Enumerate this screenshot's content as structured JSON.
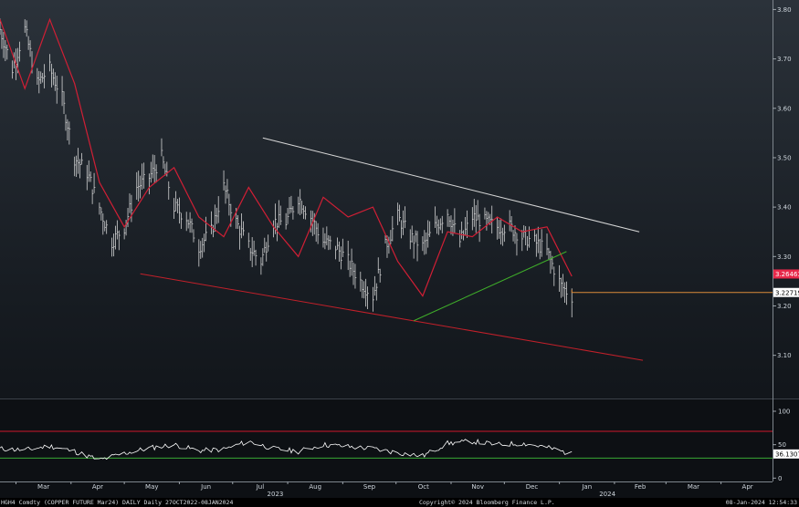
{
  "footer": {
    "ticker": "HGH4 Comdty (COPPER FUTURE    Mar24) DAILY  Daily 27OCT2022-08JAN2024",
    "copyright": "Copyright© 2024 Bloomberg Finance L.P.",
    "timestamp": "08-Jan-2024 12:54:33"
  },
  "colors": {
    "background_top": "#2a3139",
    "bars": "#e6e6e6",
    "moving_average": "#d11f35",
    "upper_trendline": "#d8d8d8",
    "lower_trendline": "#c2202a",
    "rising_trendline": "#3fae2a",
    "last_price_tag": "#e8294a",
    "level_line": "#d9893a",
    "rsi_line": "#ffffff",
    "rsi_upper_band": "#d0192b",
    "rsi_lower_band": "#39a935"
  },
  "chart_data": [
    {
      "type": "line",
      "subtype": "daily price bars with moving average",
      "x_range": [
        "2023-02-20",
        "2024-04-30"
      ],
      "y_range": [
        3.02,
        3.81
      ],
      "y_ticks": [
        "3.80",
        "3.70",
        "3.60",
        "3.50",
        "3.40",
        "3.30",
        "3.20",
        "3.10"
      ],
      "x_month_labels": [
        "Mar",
        "Apr",
        "May",
        "Jun",
        "Jul",
        "Aug",
        "Sep",
        "Oct",
        "Nov",
        "Dec",
        "Jan",
        "Feb",
        "Mar",
        "Apr"
      ],
      "year_labels": [
        "2023",
        "2024"
      ],
      "series": [
        {
          "style": "bars",
          "x": [
            "2023-02-20",
            "2023-02-27",
            "2023-03-06",
            "2023-03-13",
            "2023-03-20",
            "2023-03-27",
            "2023-04-03",
            "2023-04-10",
            "2023-04-17",
            "2023-04-24",
            "2023-05-01",
            "2023-05-08",
            "2023-05-15",
            "2023-05-22",
            "2023-05-29",
            "2023-06-05",
            "2023-06-12",
            "2023-06-19",
            "2023-06-26",
            "2023-07-03",
            "2023-07-10",
            "2023-07-17",
            "2023-07-24",
            "2023-07-31",
            "2023-08-07",
            "2023-08-14",
            "2023-08-21",
            "2023-08-28",
            "2023-09-04",
            "2023-09-11",
            "2023-09-18",
            "2023-09-25",
            "2023-10-02",
            "2023-10-09",
            "2023-10-16",
            "2023-10-23",
            "2023-10-30",
            "2023-11-06",
            "2023-11-13",
            "2023-11-20",
            "2023-11-27",
            "2023-12-04",
            "2023-12-11",
            "2023-12-18",
            "2023-12-25",
            "2024-01-02",
            "2024-01-08"
          ],
          "values": [
            3.76,
            3.68,
            3.76,
            3.65,
            3.68,
            3.62,
            3.5,
            3.47,
            3.4,
            3.33,
            3.36,
            3.44,
            3.46,
            3.5,
            3.4,
            3.38,
            3.32,
            3.35,
            3.44,
            3.37,
            3.32,
            3.29,
            3.37,
            3.37,
            3.42,
            3.38,
            3.33,
            3.32,
            3.29,
            3.25,
            3.22,
            3.32,
            3.38,
            3.34,
            3.32,
            3.36,
            3.39,
            3.33,
            3.38,
            3.37,
            3.36,
            3.36,
            3.34,
            3.33,
            3.31,
            3.24,
            3.22
          ]
        },
        {
          "name": "moving average",
          "style": "line",
          "x": [
            "2023-02-20",
            "2023-03-06",
            "2023-03-20",
            "2023-04-03",
            "2023-04-17",
            "2023-05-01",
            "2023-05-15",
            "2023-05-29",
            "2023-06-12",
            "2023-06-26",
            "2023-07-10",
            "2023-07-24",
            "2023-08-07",
            "2023-08-21",
            "2023-09-04",
            "2023-09-18",
            "2023-10-02",
            "2023-10-16",
            "2023-10-30",
            "2023-11-13",
            "2023-11-27",
            "2023-12-11",
            "2023-12-25",
            "2024-01-08"
          ],
          "values": [
            3.78,
            3.64,
            3.78,
            3.65,
            3.45,
            3.36,
            3.44,
            3.48,
            3.38,
            3.34,
            3.44,
            3.36,
            3.3,
            3.42,
            3.38,
            3.4,
            3.29,
            3.22,
            3.35,
            3.34,
            3.38,
            3.35,
            3.36,
            3.26
          ]
        }
      ],
      "trendlines": [
        {
          "from": [
            "2023-07-18",
            3.54
          ],
          "to": [
            "2024-02-15",
            3.35
          ]
        },
        {
          "from": [
            "2023-05-10",
            3.265
          ],
          "to": [
            "2024-02-17",
            3.09
          ]
        },
        {
          "from": [
            "2023-10-11",
            3.17
          ],
          "to": [
            "2024-01-05",
            3.31
          ]
        }
      ],
      "price_labels": [
        {
          "label": "3.26463",
          "value": 3.26463
        },
        {
          "label": "3.22719",
          "value": 3.22719
        }
      ],
      "level_line": {
        "value": 3.22719,
        "from": "2024-01-08"
      }
    },
    {
      "type": "line",
      "subtype": "oscillator",
      "y_range": [
        -5,
        115
      ],
      "y_ticks": [
        "100",
        "50",
        "0"
      ],
      "bands": [
        70,
        30
      ],
      "series": [
        {
          "x": [
            "2023-02-20",
            "2023-03-06",
            "2023-03-20",
            "2023-04-03",
            "2023-04-17",
            "2023-05-01",
            "2023-05-15",
            "2023-05-29",
            "2023-06-12",
            "2023-06-26",
            "2023-07-10",
            "2023-07-24",
            "2023-08-07",
            "2023-08-21",
            "2023-09-04",
            "2023-09-18",
            "2023-10-02",
            "2023-10-16",
            "2023-10-30",
            "2023-11-13",
            "2023-11-27",
            "2023-12-11",
            "2023-12-25",
            "2024-01-08"
          ],
          "values": [
            44,
            42,
            48,
            40,
            27,
            37,
            45,
            50,
            41,
            43,
            55,
            44,
            40,
            50,
            47,
            44,
            38,
            33,
            52,
            55,
            50,
            52,
            46,
            36
          ]
        }
      ],
      "last_value_label": "36.1307",
      "last_value": 36.1307
    }
  ]
}
